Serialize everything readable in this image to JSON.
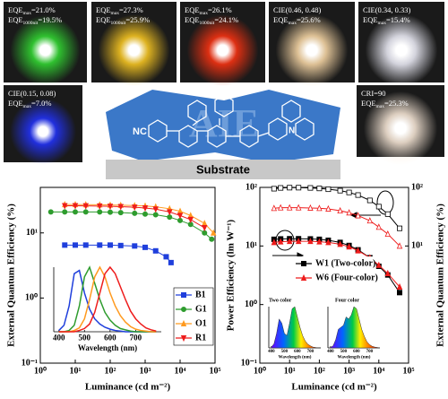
{
  "photos": [
    {
      "color": "#33dd33",
      "lines": [
        {
          "main": "EQE",
          "sub": "max",
          "rest": "=21.0%"
        },
        {
          "main": "EQE",
          "sub": "1000nit",
          "rest": "=19.5%"
        }
      ]
    },
    {
      "color": "#ffcc22",
      "lines": [
        {
          "main": "EQE",
          "sub": "max",
          "rest": "=27.3%"
        },
        {
          "main": "EQE",
          "sub": "1000nit",
          "rest": "=25.9%"
        }
      ]
    },
    {
      "color": "#ff3311",
      "lines": [
        {
          "main": "EQE",
          "sub": "max",
          "rest": "=26.1%"
        },
        {
          "main": "EQE",
          "sub": "1000nit",
          "rest": "=24.1%"
        }
      ]
    },
    {
      "color": "#ffddaa",
      "lines": [
        {
          "main": "CIE(0.46, 0.48)"
        },
        {
          "main": "EQE",
          "sub": "max",
          "rest": "=25.6%"
        }
      ]
    },
    {
      "color": "#f4f4ff",
      "lines": [
        {
          "main": "CIE(0.34, 0.33)"
        },
        {
          "main": "EQE",
          "sub": "max",
          "rest": "=15.4%"
        }
      ]
    },
    {
      "color": "#2233ff",
      "lines": [
        {
          "main": "CIE(0.15, 0.08)"
        },
        {
          "main": "EQE",
          "sub": "max",
          "rest": "=7.0%"
        }
      ]
    },
    {
      "color": "#ffeedd",
      "lines": [
        {
          "main": "CRI=90"
        },
        {
          "main": "EQE",
          "sub": "max",
          "rest": "=25.3%"
        }
      ]
    }
  ],
  "diagram": {
    "substituent": "NC",
    "watermark": "AIE",
    "atom": "N",
    "substrate": "Substrate"
  },
  "chart_data": [
    {
      "type": "line",
      "ylabel": "External Quantum Efficiency (%)",
      "xlabel": "Luminance (cd m⁻²)",
      "log_x": true,
      "log_y": true,
      "xlim": [
        1,
        100000
      ],
      "ylim": [
        0.1,
        50
      ],
      "xticks": [
        {
          "value": 1,
          "label": "10⁰"
        },
        {
          "value": 10,
          "label": "10¹"
        },
        {
          "value": 100,
          "label": "10²"
        },
        {
          "value": 1000,
          "label": "10³"
        },
        {
          "value": 10000,
          "label": "10⁴"
        },
        {
          "value": 100000,
          "label": "10⁵"
        }
      ],
      "yticks": [
        {
          "value": 0.1,
          "label": "10⁻¹"
        },
        {
          "value": 1,
          "label": "10⁰"
        },
        {
          "value": 10,
          "label": "10¹"
        }
      ],
      "legend": "right",
      "series": [
        {
          "name": "B1",
          "color": "#1f3fdc",
          "marker": "square",
          "x": [
            5,
            10,
            20,
            50,
            100,
            200,
            500,
            1000,
            2000,
            4000,
            5500
          ],
          "values": [
            6.5,
            6.5,
            6.5,
            6.5,
            6.5,
            6.4,
            6.3,
            6.0,
            5.3,
            4.3,
            3.5
          ],
          "spectrum": [
            0.02,
            0.1,
            0.4,
            0.9,
            0.95,
            0.6,
            0.35,
            0.2,
            0.12,
            0.07,
            0.04,
            0.02,
            0.01,
            0,
            0,
            0,
            0,
            0,
            0,
            0
          ]
        },
        {
          "name": "G1",
          "color": "#2e9c2e",
          "marker": "circle",
          "x": [
            2,
            5,
            10,
            20,
            50,
            100,
            200,
            500,
            1000,
            2000,
            5000,
            10000,
            20000,
            50000,
            80000
          ],
          "values": [
            21,
            21,
            21,
            21,
            21,
            20.8,
            20.5,
            20,
            19.5,
            19,
            17.5,
            15.5,
            13.5,
            10,
            8
          ],
          "spectrum": [
            0,
            0,
            0.02,
            0.1,
            0.4,
            0.85,
            1,
            0.75,
            0.5,
            0.3,
            0.18,
            0.1,
            0.05,
            0.03,
            0.01,
            0,
            0,
            0,
            0,
            0
          ]
        },
        {
          "name": "O1",
          "color": "#ff9a1f",
          "marker": "triangle",
          "x": [
            5,
            10,
            20,
            50,
            100,
            200,
            500,
            1000,
            2000,
            5000,
            10000,
            20000,
            50000,
            90000
          ],
          "values": [
            27.3,
            27.3,
            27.2,
            27,
            26.8,
            26.6,
            26.3,
            25.9,
            25.2,
            23.5,
            21.5,
            18.5,
            14,
            10
          ],
          "spectrum": [
            0,
            0,
            0,
            0.02,
            0.06,
            0.2,
            0.5,
            0.85,
            1,
            0.85,
            0.6,
            0.4,
            0.25,
            0.15,
            0.08,
            0.04,
            0.02,
            0.01,
            0,
            0
          ]
        },
        {
          "name": "R1",
          "color": "#ee1c1c",
          "marker": "down-triangle",
          "x": [
            5,
            10,
            20,
            50,
            100,
            200,
            500,
            1000,
            2000,
            5000,
            10000,
            20000,
            50000
          ],
          "values": [
            26.1,
            26.1,
            26,
            25.8,
            25.6,
            25.3,
            24.8,
            24.1,
            23.2,
            21,
            18.5,
            16,
            12
          ],
          "spectrum": [
            0,
            0,
            0,
            0,
            0.02,
            0.05,
            0.12,
            0.3,
            0.6,
            0.9,
            1,
            0.9,
            0.7,
            0.5,
            0.32,
            0.2,
            0.12,
            0.06,
            0.03,
            0.01
          ]
        }
      ],
      "inset": {
        "xlabel": "Wavelength (nm)",
        "xlim": [
          380,
          800
        ],
        "ylim": [
          0,
          1
        ],
        "xticks": [
          400,
          500,
          600,
          700
        ],
        "x": [
          400,
          420,
          440,
          460,
          480,
          500,
          520,
          540,
          560,
          580,
          600,
          620,
          640,
          660,
          680,
          700,
          720,
          740,
          760,
          780
        ]
      }
    },
    {
      "type": "line",
      "ylabel": "Power Efficiency (lm W⁻¹)",
      "y2label": "External Quantum Efficiency (%)",
      "xlabel": "Luminance (cd m⁻²)",
      "log_x": true,
      "log_y": true,
      "xlim": [
        1,
        100000
      ],
      "ylim": [
        0.1,
        100
      ],
      "y2lim": [
        0.1,
        100
      ],
      "xticks": [
        {
          "value": 1,
          "label": "10⁰"
        },
        {
          "value": 10,
          "label": "10¹"
        },
        {
          "value": 100,
          "label": "10²"
        },
        {
          "value": 1000,
          "label": "10³"
        },
        {
          "value": 10000,
          "label": "10⁴"
        },
        {
          "value": 100000,
          "label": "10⁵"
        }
      ],
      "yticks": [
        {
          "value": 0.1,
          "label": "10⁻¹"
        },
        {
          "value": 1,
          "label": "10⁰"
        },
        {
          "value": 10,
          "label": "10¹"
        },
        {
          "value": 100,
          "label": "10²"
        }
      ],
      "y2ticks": [
        {
          "value": 10,
          "label": "10¹"
        },
        {
          "value": 100,
          "label": "10²"
        }
      ],
      "legend": "center",
      "series": [
        {
          "name": "W1 (Two-color)",
          "color": "#000000",
          "marker": "square",
          "x": [
            3,
            5,
            10,
            20,
            50,
            100,
            200,
            500,
            1000,
            2000,
            5000,
            10000,
            20000,
            50000
          ],
          "values": [
            13,
            13.2,
            13.3,
            13.3,
            13.2,
            13,
            12.5,
            11.5,
            10.2,
            8.6,
            6.3,
            4.5,
            3.2,
            1.6
          ]
        },
        {
          "name": "W6 (Four-color)",
          "color": "#ee1c1c",
          "marker": "triangle",
          "x": [
            3,
            5,
            10,
            20,
            50,
            100,
            200,
            500,
            1000,
            2000,
            5000,
            10000,
            20000,
            50000
          ],
          "values": [
            11.5,
            11.8,
            12,
            12,
            12,
            11.8,
            11.5,
            10.7,
            9.7,
            8.3,
            6.3,
            4.7,
            3.4,
            2
          ]
        },
        {
          "color": "#000000",
          "marker": "square-open",
          "axis": "y2",
          "x": [
            3,
            5,
            10,
            20,
            50,
            100,
            200,
            500,
            1000,
            2000,
            5000,
            10000,
            20000,
            50000
          ],
          "values": [
            95,
            98,
            99,
            99,
            98,
            96,
            93,
            88,
            82,
            74,
            60,
            47,
            35,
            20
          ]
        },
        {
          "color": "#ee1c1c",
          "marker": "triangle-open",
          "axis": "y2",
          "x": [
            3,
            5,
            10,
            20,
            50,
            100,
            200,
            500,
            1000,
            2000,
            5000,
            10000,
            20000,
            50000
          ],
          "values": [
            44,
            45,
            45,
            45,
            44.5,
            44,
            43,
            40,
            37,
            33,
            27,
            21,
            16,
            10
          ]
        }
      ],
      "insets": [
        {
          "title": "Two color",
          "xlabel": "Wavelength (nm)",
          "xlim": [
            380,
            780
          ],
          "ylim": [
            0,
            1
          ],
          "xticks": [
            400,
            500,
            600,
            700
          ],
          "x": [
            400,
            420,
            440,
            460,
            480,
            500,
            520,
            540,
            560,
            580,
            600,
            620,
            640,
            660,
            680,
            700,
            720,
            740,
            760,
            780
          ],
          "values": [
            0.02,
            0.1,
            0.35,
            0.7,
            0.6,
            0.35,
            0.3,
            0.6,
            0.95,
            1,
            0.75,
            0.5,
            0.3,
            0.17,
            0.09,
            0.05,
            0.02,
            0.01,
            0,
            0
          ]
        },
        {
          "title": "Four color",
          "xlabel": "Wavelength (nm)",
          "xlim": [
            380,
            780
          ],
          "ylim": [
            0,
            1
          ],
          "xticks": [
            400,
            500,
            600,
            700
          ],
          "x": [
            400,
            420,
            440,
            460,
            480,
            500,
            520,
            540,
            560,
            580,
            600,
            620,
            640,
            660,
            680,
            700,
            720,
            740,
            760,
            780
          ],
          "values": [
            0.01,
            0.05,
            0.2,
            0.45,
            0.5,
            0.55,
            0.75,
            0.7,
            0.8,
            1,
            0.95,
            0.7,
            0.45,
            0.28,
            0.15,
            0.08,
            0.04,
            0.02,
            0.01,
            0
          ]
        }
      ]
    }
  ]
}
